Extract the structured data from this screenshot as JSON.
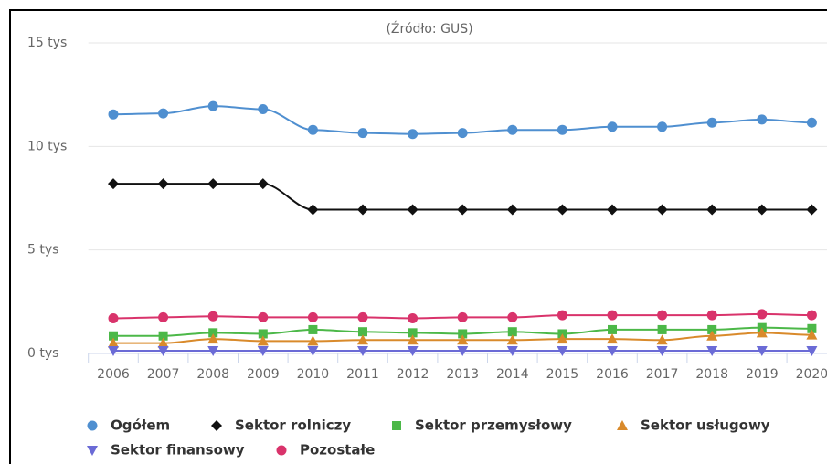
{
  "chart_data": {
    "type": "line",
    "title": "(Źródło: GUS)",
    "categories": [
      "2006",
      "2007",
      "2008",
      "2009",
      "2010",
      "2011",
      "2012",
      "2013",
      "2014",
      "2015",
      "2016",
      "2017",
      "2018",
      "2019",
      "2020"
    ],
    "ylim": [
      0,
      15000
    ],
    "yticks": [
      {
        "value": 0,
        "label": "0 tys"
      },
      {
        "value": 5000,
        "label": "5 tys"
      },
      {
        "value": 10000,
        "label": "10 tys"
      },
      {
        "value": 15000,
        "label": "15 tys"
      }
    ],
    "grid": true,
    "series": [
      {
        "name": "Ogółem",
        "color": "#4f8fd0",
        "marker": "circle",
        "values": [
          11550,
          11600,
          11950,
          11800,
          10800,
          10650,
          10600,
          10650,
          10800,
          10800,
          10950,
          10950,
          11150,
          11300,
          11150
        ]
      },
      {
        "name": "Sektor rolniczy",
        "color": "#111111",
        "marker": "diamond",
        "values": [
          8200,
          8200,
          8200,
          8200,
          6950,
          6950,
          6950,
          6950,
          6950,
          6950,
          6950,
          6950,
          6950,
          6950,
          6950
        ]
      },
      {
        "name": "Sektor przemysłowy",
        "color": "#4cb848",
        "marker": "square",
        "values": [
          850,
          850,
          1000,
          950,
          1150,
          1050,
          1000,
          950,
          1050,
          950,
          1150,
          1150,
          1150,
          1250,
          1200
        ]
      },
      {
        "name": "Sektor usługowy",
        "color": "#d98a2b",
        "marker": "triangle",
        "values": [
          500,
          500,
          700,
          600,
          600,
          650,
          650,
          650,
          650,
          700,
          700,
          650,
          850,
          1000,
          900
        ]
      },
      {
        "name": "Sektor finansowy",
        "color": "#6b6bd6",
        "marker": "triangle-down",
        "values": [
          130,
          130,
          130,
          130,
          130,
          130,
          130,
          130,
          130,
          130,
          130,
          130,
          130,
          130,
          130
        ]
      },
      {
        "name": "Pozostałe",
        "color": "#d9336b",
        "marker": "circle",
        "values": [
          1700,
          1750,
          1800,
          1750,
          1750,
          1750,
          1700,
          1750,
          1750,
          1850,
          1850,
          1850,
          1850,
          1900,
          1850
        ]
      }
    ]
  }
}
